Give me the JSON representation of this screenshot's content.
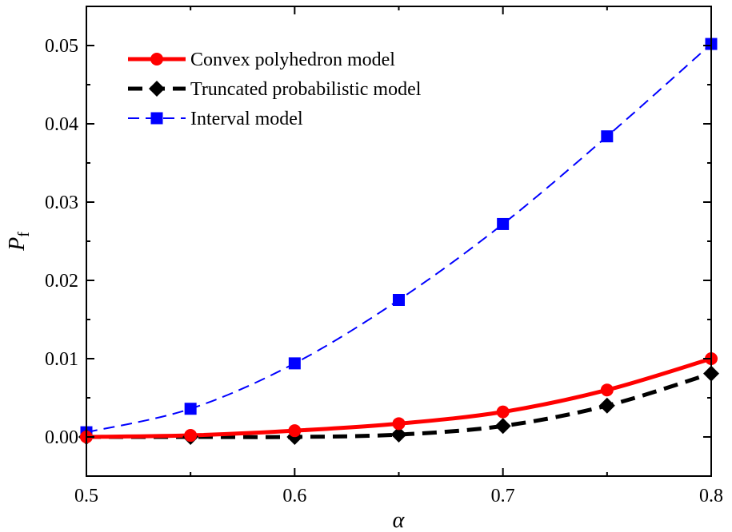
{
  "chart_data": {
    "type": "line",
    "title": "",
    "xlabel": "α",
    "ylabel": "P",
    "ylabel_subscript": "f",
    "xlim": [
      0.5,
      0.8
    ],
    "ylim": [
      -0.005,
      0.055
    ],
    "xticks": [
      "0.5",
      "0.6",
      "0.7",
      "0.8"
    ],
    "xtick_values": [
      0.5,
      0.6,
      0.7,
      0.8
    ],
    "yticks": [
      "0.00",
      "0.01",
      "0.02",
      "0.03",
      "0.04",
      "0.05"
    ],
    "ytick_values": [
      0,
      0.01,
      0.02,
      0.03,
      0.04,
      0.05
    ],
    "grid": false,
    "legend_position": "top-left",
    "x": [
      0.5,
      0.55,
      0.6,
      0.65,
      0.7,
      0.75,
      0.8
    ],
    "series": [
      {
        "name": "Convex polyhedron model",
        "color": "#ff0000",
        "marker": "circle",
        "line": "solid",
        "values": [
          0.0,
          0.0002,
          0.0008,
          0.0017,
          0.0032,
          0.006,
          0.01
        ]
      },
      {
        "name": "Truncated probabilistic model",
        "color": "#000000",
        "marker": "diamond",
        "line": "dashed",
        "values": [
          0.0,
          0.0,
          0.0,
          0.0003,
          0.0014,
          0.004,
          0.0081
        ]
      },
      {
        "name": "Interval model",
        "color": "#0000ff",
        "marker": "square",
        "line": "dashed-thin",
        "values": [
          0.0006,
          0.0036,
          0.0094,
          0.0175,
          0.0272,
          0.0384,
          0.0502
        ]
      }
    ]
  }
}
